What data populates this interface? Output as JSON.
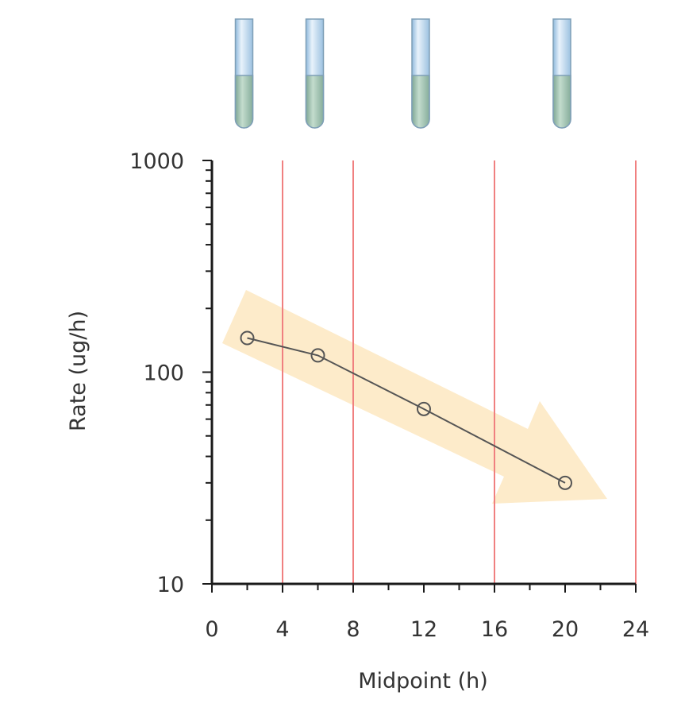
{
  "chart_data": {
    "type": "line",
    "xlabel": "Midpoint (h)",
    "ylabel": "Rate (ug/h)",
    "x_scale": "linear",
    "y_scale": "log",
    "xlim": [
      0,
      24
    ],
    "ylim": [
      10,
      1000
    ],
    "x_ticks": [
      "0",
      "4",
      "8",
      "12",
      "16",
      "20",
      "24"
    ],
    "y_ticks": [
      "10",
      "100",
      "1000"
    ],
    "series": [
      {
        "x": [
          2,
          6,
          12,
          20
        ],
        "y": [
          145,
          120,
          67,
          30
        ],
        "color": "#555555",
        "marker": "open-circle"
      }
    ],
    "collection_interval_boundaries_h": [
      4,
      8,
      16,
      24
    ],
    "boundary_color": "#f08080",
    "trend_arrow": {
      "direction": "decreasing",
      "color": "#fde9c4"
    },
    "sample_tubes": {
      "count": 4,
      "icon": "test-tube-icon",
      "liquid_color": "#a9c9b6",
      "glass_color": "#cfe3f3"
    }
  }
}
